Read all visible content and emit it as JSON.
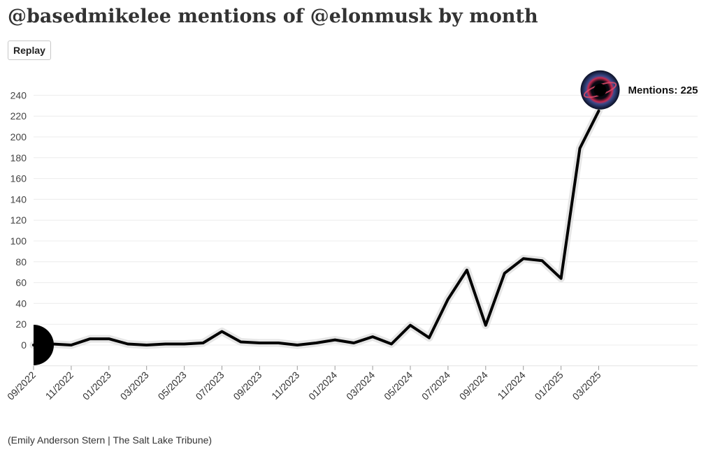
{
  "header": {
    "title": "@basedmikelee mentions of @elonmusk by month"
  },
  "controls": {
    "replay_label": "Replay"
  },
  "footer": {
    "source": "(Emily Anderson Stern | The Salt Lake Tribune)"
  },
  "chart_data": {
    "type": "line",
    "title": "@basedmikelee mentions of @elonmusk by month",
    "xlabel": "",
    "ylabel": "",
    "ylim": [
      -20,
      240
    ],
    "yticks": [
      0,
      20,
      40,
      60,
      80,
      100,
      120,
      140,
      160,
      180,
      200,
      220,
      240
    ],
    "grid": true,
    "x": [
      "09/2022",
      "10/2022",
      "11/2022",
      "12/2022",
      "01/2023",
      "02/2023",
      "03/2023",
      "04/2023",
      "05/2023",
      "06/2023",
      "07/2023",
      "08/2023",
      "09/2023",
      "10/2023",
      "11/2023",
      "12/2023",
      "01/2024",
      "02/2024",
      "03/2024",
      "04/2024",
      "05/2024",
      "06/2024",
      "07/2024",
      "08/2024",
      "09/2024",
      "10/2024",
      "11/2024",
      "12/2024",
      "01/2025",
      "02/2025",
      "03/2025"
    ],
    "xtick_labels": [
      "09/2022",
      "11/2022",
      "01/2023",
      "03/2023",
      "05/2023",
      "07/2023",
      "09/2023",
      "11/2023",
      "01/2024",
      "03/2024",
      "05/2024",
      "07/2024",
      "09/2024",
      "11/2024",
      "01/2025",
      "03/2025"
    ],
    "series": [
      {
        "values": [
          0,
          1,
          0,
          6,
          6,
          1,
          0,
          1,
          1,
          2,
          13,
          3,
          2,
          2,
          0,
          2,
          5,
          2,
          8,
          1,
          19,
          7,
          44,
          72,
          19,
          69,
          83,
          81,
          64,
          189,
          225
        ]
      }
    ],
    "annotation": {
      "label": "Mentions: 225"
    },
    "colors": {
      "line": "#000000",
      "halo": "#e6e6e6",
      "grid": "#ececec"
    }
  }
}
